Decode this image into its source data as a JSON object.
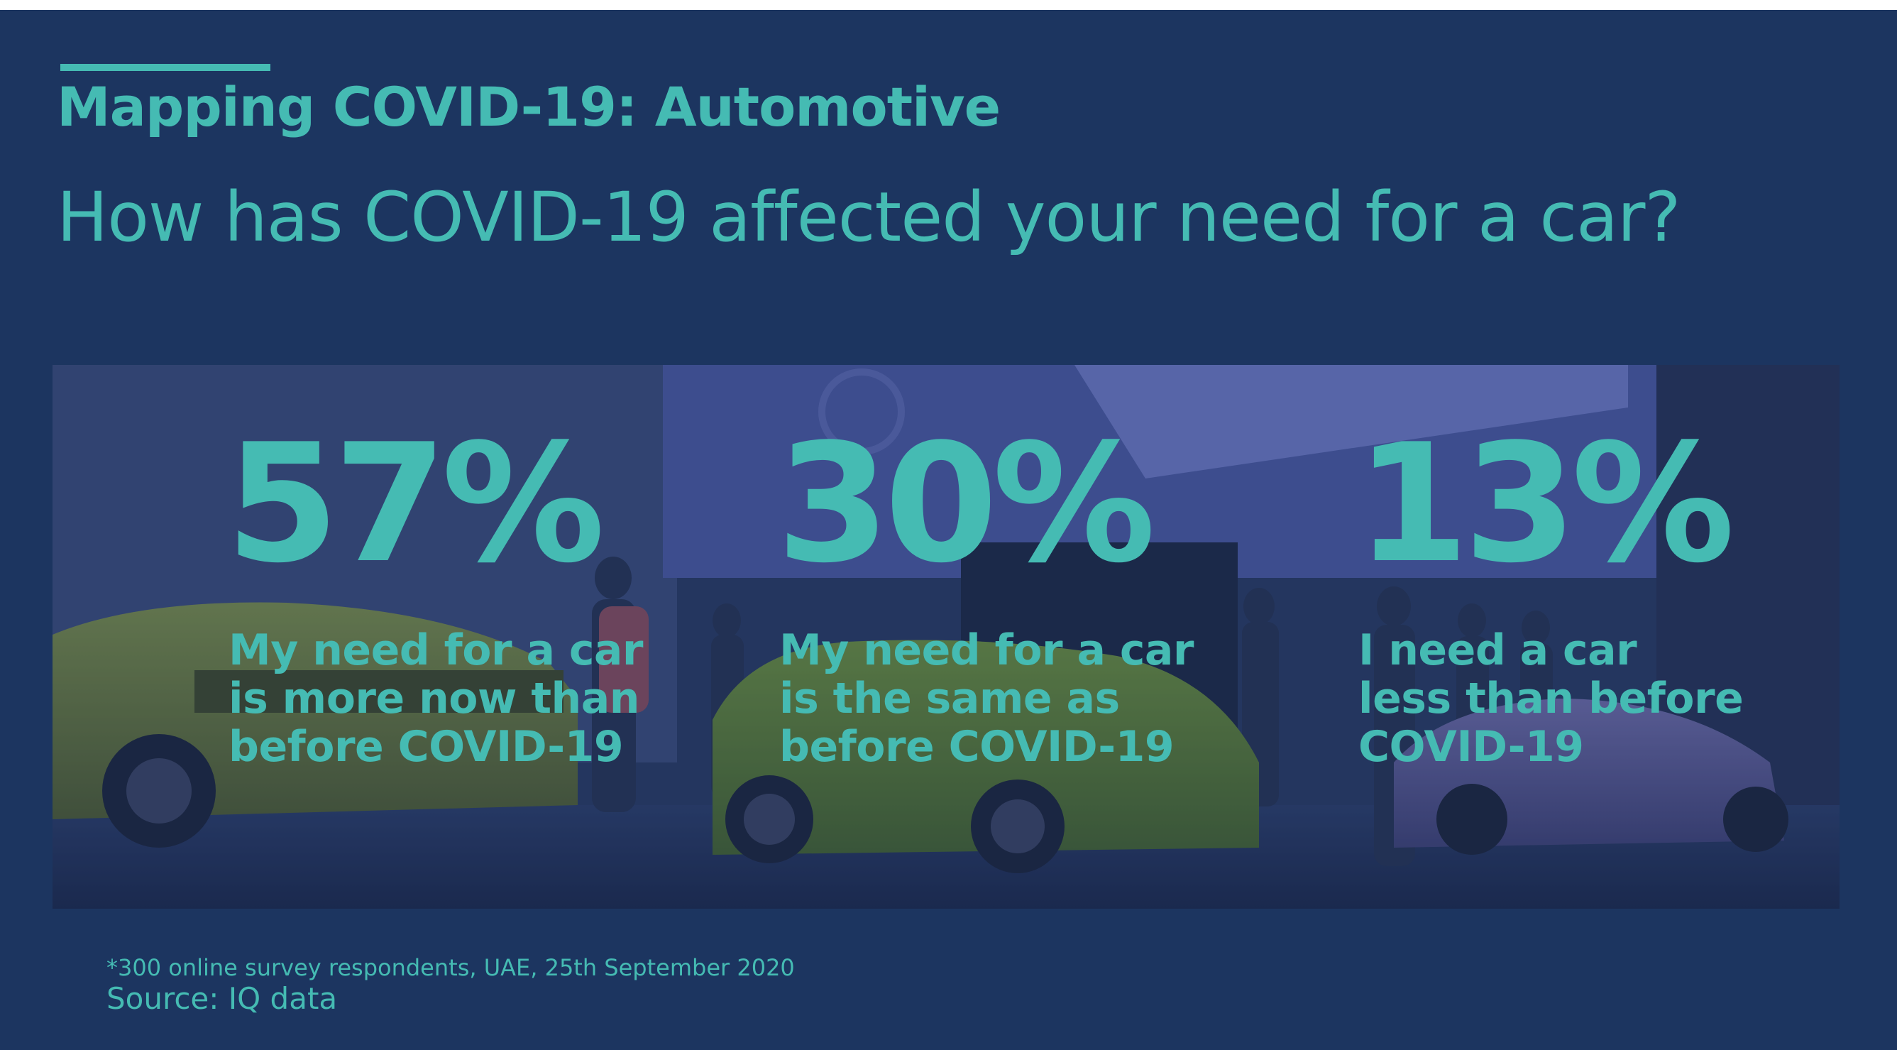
{
  "header": {
    "section_title": "Mapping COVID-19: Automotive",
    "question": "How has COVID-19 affected your need for a car?"
  },
  "stats": [
    {
      "value": "57%",
      "label_lines": [
        "My need for a car",
        "is more now than",
        "before COVID-19"
      ]
    },
    {
      "value": "30%",
      "label_lines": [
        "My need for a car",
        "is the same as",
        "before COVID-19"
      ]
    },
    {
      "value": "13%",
      "label_lines": [
        "I need a car",
        "less than before",
        "COVID-19"
      ]
    }
  ],
  "footer": {
    "footnote": "*300 online survey respondents, UAE, 25th September 2020",
    "source": "Source: IQ data"
  },
  "colors": {
    "background": "#1c3560",
    "accent": "#45bbb3"
  }
}
